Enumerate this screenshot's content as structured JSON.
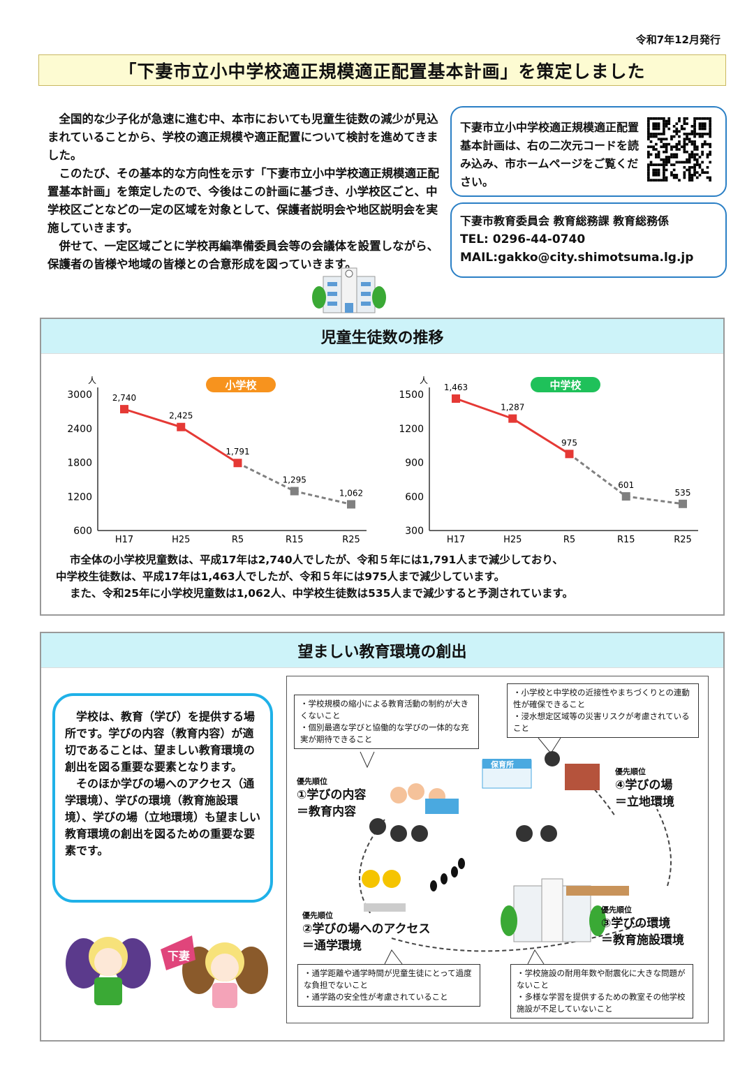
{
  "issue_date": "令和7年12月発行",
  "title": "「下妻市立小中学校適正規模適正配置基本計画」を策定しました",
  "intro": [
    "全国的な少子化が急速に進む中、本市においても児童生徒数の減少が見込まれていることから、学校の適正規模や適正配置について検討を進めてきました。",
    "このたび、その基本的な方向性を示す「下妻市立小中学校適正規模適正配置基本計画」を策定したので、今後はこの計画に基づき、小学校区ごと、中学校区ごとなどの一定の区域を対象として、保護者説明会や地区説明会を実施していきます。",
    "併せて、一定区域ごとに学校再編準備委員会等の会議体を設置しながら、保護者の皆様や地域の皆様との合意形成を図っていきます。"
  ],
  "qr_box": {
    "text": "下妻市立小中学校適正規模適正配置基本計画は、右の二次元コードを読み込み、市ホームページをご覧ください。",
    "icon": "qr-code"
  },
  "contact": {
    "dept": "下妻市教育委員会 教育総務課 教育総務係",
    "tel": "TEL: 0296-44-0740",
    "mail": "MAIL:gakko@city.shimotsuma.lg.jp"
  },
  "section1": {
    "title": "児童生徒数の推移",
    "summary": [
      "市全体の小学校児童数は、平成17年は2,740人でしたが、令和５年には1,791人まで減少しており、",
      "中学校生徒数は、平成17年は1,463人でしたが、令和５年には975人まで減少しています。",
      "また、令和25年に小学校児童数は1,062人、中学校生徒数は535人まで減少すると予測されています。"
    ]
  },
  "chart_data": [
    {
      "type": "line",
      "title": "小学校",
      "title_color": "#f7931e",
      "ylabel": "人",
      "ylim": [
        600,
        3000
      ],
      "yticks": [
        600,
        1200,
        1800,
        2400,
        3000
      ],
      "categories": [
        "H17",
        "H25",
        "R5",
        "R15",
        "R25"
      ],
      "values": [
        2740,
        2425,
        1791,
        1295,
        1062
      ],
      "labels": [
        "2,740",
        "2,425",
        "1,791",
        "1,295",
        "1,062"
      ],
      "actual_count": 3,
      "actual_color": "#e53935",
      "projected_color": "#808080",
      "grid": false
    },
    {
      "type": "line",
      "title": "中学校",
      "title_color": "#1fc15a",
      "ylabel": "人",
      "ylim": [
        300,
        1500
      ],
      "yticks": [
        300,
        600,
        900,
        1200,
        1500
      ],
      "categories": [
        "H17",
        "H25",
        "R5",
        "R15",
        "R25"
      ],
      "values": [
        1463,
        1287,
        975,
        601,
        535
      ],
      "labels": [
        "1,463",
        "1,287",
        "975",
        "601",
        "535"
      ],
      "actual_count": 3,
      "actual_color": "#e53935",
      "projected_color": "#808080",
      "grid": false
    }
  ],
  "section2": {
    "title": "望ましい教育環境の創出",
    "bubble": [
      "学校は、教育（学び）を提供する場所です。学びの内容（教育内容）が適切であることは、望ましい教育環境の創出を図る重要な要素となります。",
      "そのほか学びの場へのアクセス（通学環境）、学びの環境（教育施設環境）、学びの場（立地環境）も望ましい教育環境の創出を図るための重要な要素です。"
    ],
    "mascot_flag": "下妻",
    "diagram": {
      "priority_label": "優先順位",
      "p1": {
        "name": "①学びの内容",
        "sub": "＝教育内容",
        "notes": [
          "・学校規模の縮小による教育活動の制約が大きくないこと",
          "・個別最適な学びと協働的な学びの一体的な充実が期待できること"
        ]
      },
      "p2": {
        "name": "②学びの場へのアクセス",
        "sub": "＝通学環境",
        "notes": [
          "・通学距離や通学時間が児童生徒にとって過度な負担でないこと",
          "・通学路の安全性が考慮されていること"
        ]
      },
      "p3": {
        "name": "③学びの環境",
        "sub": "＝教育施設環境",
        "notes": [
          "・学校施設の耐用年数や耐震化に大きな問題がないこと",
          "・多様な学習を提供するための教室その他学校施設が不足していないこと"
        ]
      },
      "p4": {
        "name": "④学びの場",
        "sub": "＝立地環境",
        "notes": [
          "・小学校と中学校の近接性やまちづくりとの連動性が確保できること",
          "・浸水想定区域等の災害リスクが考慮されていること"
        ]
      },
      "nursery_sign": "保育所"
    }
  }
}
